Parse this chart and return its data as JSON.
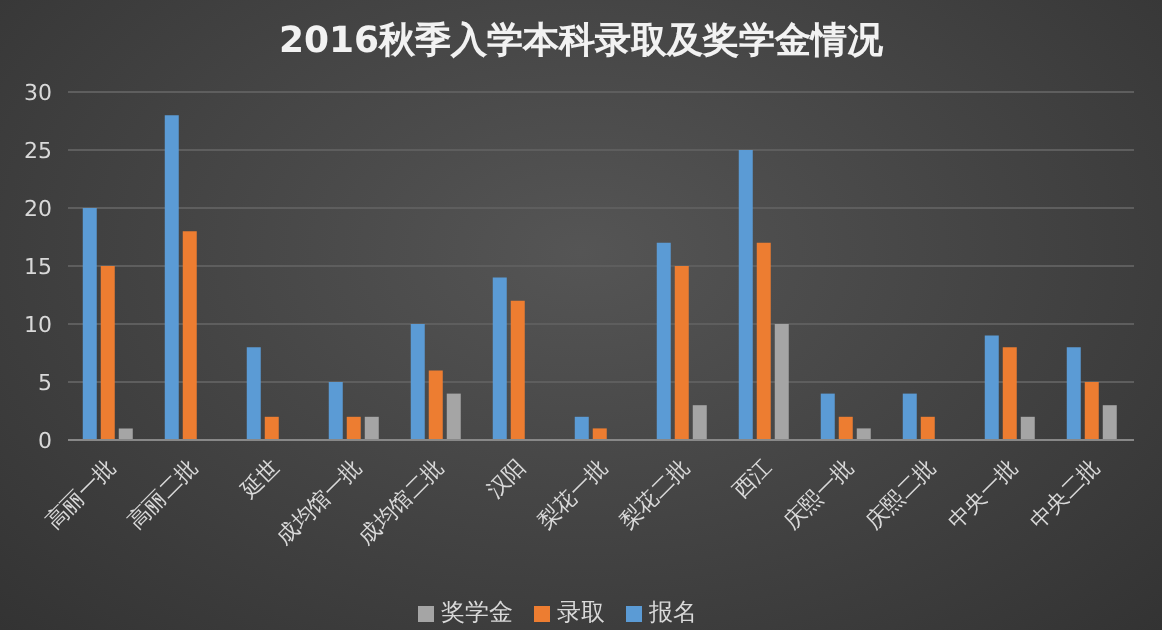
{
  "chart_data": {
    "type": "bar",
    "title": "2016秋季入学本科录取及奖学金情况",
    "categories": [
      "高丽一批",
      "高丽二批",
      "延世",
      "成均馆一批",
      "成均馆二批",
      "汉阳",
      "梨花一批",
      "梨花二批",
      "西江",
      "庆熙一批",
      "庆熙二批",
      "中央一批",
      "中央二批"
    ],
    "series": [
      {
        "name": "报名",
        "color": "#5b9bd5",
        "values": [
          20,
          28,
          8,
          5,
          10,
          14,
          2,
          17,
          25,
          4,
          4,
          9,
          8
        ]
      },
      {
        "name": "录取",
        "color": "#ed7d31",
        "values": [
          15,
          18,
          2,
          2,
          6,
          12,
          1,
          15,
          17,
          2,
          2,
          8,
          5
        ]
      },
      {
        "name": "奖学金",
        "color": "#a5a5a5",
        "values": [
          1,
          0,
          0,
          2,
          4,
          0,
          0,
          3,
          10,
          1,
          0,
          2,
          3
        ]
      }
    ],
    "ylim": [
      0,
      30
    ],
    "yticks": [
      0,
      5,
      10,
      15,
      20,
      25,
      30
    ],
    "grid": "y",
    "legend": "bottom"
  }
}
